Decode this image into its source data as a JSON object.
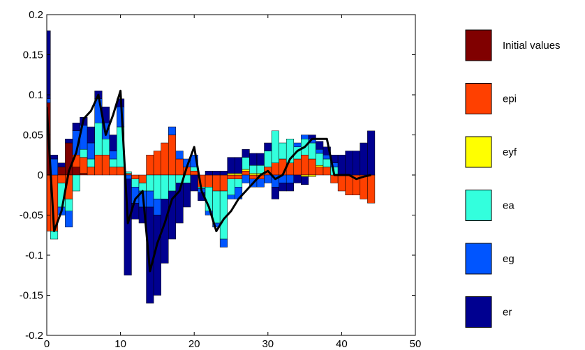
{
  "chart_data": {
    "type": "bar",
    "stacked": true,
    "title": "",
    "xlabel": "",
    "ylabel": "",
    "xlim": [
      0,
      50
    ],
    "ylim": [
      -0.2,
      0.2
    ],
    "xticks": [
      0,
      10,
      20,
      30,
      40,
      50
    ],
    "yticks": [
      -0.2,
      -0.15,
      -0.1,
      -0.05,
      0,
      0.05,
      0.1,
      0.15,
      0.2
    ],
    "xtick_labels": [
      "0",
      "10",
      "20",
      "30",
      "40",
      "50"
    ],
    "ytick_labels": [
      "-0.2",
      "-0.15",
      "-0.1",
      "-0.05",
      "0",
      "0.05",
      "0.1",
      "0.15",
      "0.2"
    ],
    "grid": false,
    "legend_position": "right",
    "x": [
      0,
      1,
      2,
      3,
      4,
      5,
      6,
      7,
      8,
      9,
      10,
      11,
      12,
      13,
      14,
      15,
      16,
      17,
      18,
      19,
      20,
      21,
      22,
      23,
      24,
      25,
      26,
      27,
      28,
      29,
      30,
      31,
      32,
      33,
      34,
      35,
      36,
      37,
      38,
      39,
      40,
      41,
      42,
      43,
      44
    ],
    "series": [
      {
        "name": "Initial values",
        "color": "#800000",
        "values": [
          0.09,
          0,
          0.01,
          0.04,
          0.01,
          0.002,
          0,
          0,
          0,
          0,
          0,
          0,
          0,
          0,
          0,
          0,
          0,
          0,
          0,
          0,
          0,
          0,
          0,
          0,
          0,
          0,
          0,
          0,
          0,
          0,
          0,
          0,
          0,
          0,
          0,
          0,
          0,
          0,
          0,
          0,
          0,
          0,
          0,
          0,
          0
        ]
      },
      {
        "name": "epi",
        "color": "#ff4000",
        "values": [
          -0.07,
          -0.07,
          -0.01,
          -0.03,
          0.015,
          0.02,
          0.01,
          0.025,
          0.025,
          0.01,
          0.01,
          0.002,
          -0.005,
          -0.01,
          0.025,
          0.03,
          0.04,
          0.05,
          0.02,
          0.01,
          0.005,
          -0.015,
          -0.015,
          -0.02,
          -0.02,
          -0.005,
          -0.005,
          0.005,
          -0.005,
          -0.005,
          0.01,
          0.015,
          0.02,
          0.015,
          0.02,
          0.025,
          0.02,
          0.01,
          0.01,
          -0.01,
          -0.02,
          -0.025,
          -0.025,
          -0.03,
          -0.035
        ]
      },
      {
        "name": "eyf",
        "color": "#ffff00",
        "values": [
          0,
          0,
          0,
          0,
          0,
          0,
          0,
          0,
          0,
          0,
          0,
          0,
          0,
          0,
          0,
          0,
          0,
          0,
          0,
          0,
          0,
          0,
          0,
          0,
          0,
          0.002,
          0.002,
          0.002,
          0.002,
          0.002,
          0,
          0,
          0,
          0,
          0,
          -0.002,
          -0.002,
          0.002,
          0,
          0,
          0,
          0,
          0,
          0,
          0
        ]
      },
      {
        "name": "ea",
        "color": "#33ffdd",
        "values": [
          0,
          -0.01,
          -0.03,
          -0.015,
          -0.02,
          0.01,
          0.01,
          0.04,
          0.02,
          0.01,
          0.05,
          0.002,
          -0.01,
          -0.01,
          -0.02,
          -0.03,
          -0.03,
          -0.02,
          -0.01,
          -0.01,
          0.005,
          -0.002,
          -0.03,
          -0.04,
          -0.06,
          -0.02,
          -0.01,
          0.015,
          0.01,
          0.01,
          0.02,
          0.04,
          0.02,
          0.03,
          0.015,
          0.02,
          0.02,
          0.015,
          0.01,
          0.01,
          0,
          0,
          0,
          0,
          0
        ]
      },
      {
        "name": "eg",
        "color": "#0055ff",
        "values": [
          0.005,
          0.02,
          -0.01,
          -0.02,
          0.03,
          0.03,
          0.02,
          0.03,
          0.02,
          0.01,
          0.025,
          -0.005,
          -0.02,
          -0.02,
          -0.02,
          -0.02,
          0,
          0.01,
          0.01,
          0.01,
          0.015,
          -0.005,
          -0.005,
          -0.005,
          -0.01,
          -0.005,
          -0.015,
          -0.01,
          -0.01,
          -0.01,
          -0.01,
          -0.015,
          -0.01,
          -0.01,
          0.005,
          0.005,
          0.005,
          0.005,
          0.005,
          0.005,
          0,
          0,
          0,
          0,
          0
        ]
      },
      {
        "name": "er",
        "color": "#000090",
        "values": [
          0.085,
          0.005,
          0.005,
          0.005,
          0.01,
          0.01,
          0.02,
          0.01,
          0.02,
          0.02,
          0.01,
          -0.12,
          -0.02,
          -0.02,
          -0.12,
          -0.1,
          -0.08,
          -0.06,
          -0.05,
          -0.03,
          -0.02,
          -0.01,
          0.005,
          0.005,
          0.005,
          0.02,
          0.02,
          0.01,
          0.015,
          0.015,
          0.01,
          -0.015,
          -0.01,
          -0.01,
          -0.01,
          -0.01,
          0.005,
          0.01,
          0.01,
          0.01,
          0.025,
          0.03,
          0.03,
          0.04,
          0.055
        ]
      }
    ],
    "line": {
      "name": "",
      "color": "#000000",
      "values": [
        0.085,
        -0.07,
        -0.045,
        0.005,
        0.028,
        0.07,
        0.08,
        0.1,
        0.05,
        0.075,
        0.105,
        -0.06,
        -0.03,
        -0.02,
        -0.12,
        -0.085,
        -0.06,
        -0.03,
        -0.02,
        0.01,
        0.035,
        -0.02,
        -0.04,
        -0.07,
        -0.055,
        -0.045,
        -0.03,
        -0.02,
        -0.01,
        0,
        0.005,
        -0.005,
        0,
        0.02,
        0.03,
        0.035,
        0.045,
        0.045,
        0.045,
        0,
        0,
        0,
        -0.005,
        -0.002,
        0
      ]
    }
  }
}
